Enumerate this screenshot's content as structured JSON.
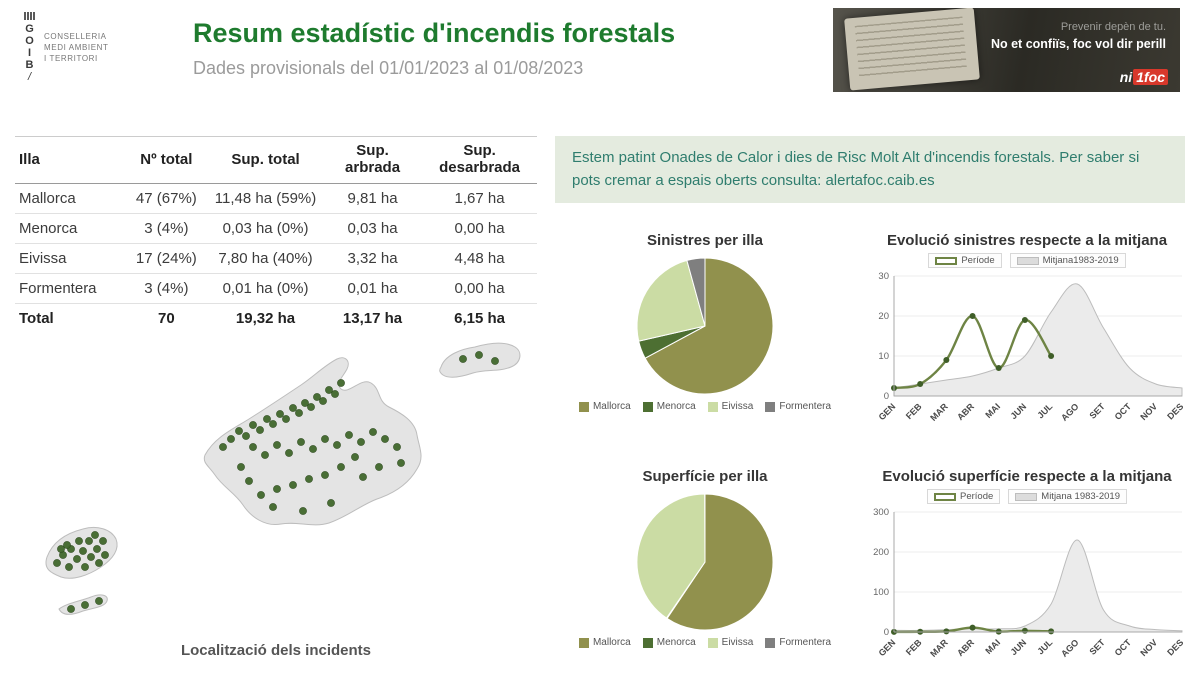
{
  "header": {
    "logo": {
      "letters": [
        "G",
        "O",
        "I",
        "B"
      ],
      "slash": "/"
    },
    "org": [
      "CONSELLERIA",
      "MEDI AMBIENT",
      "I TERRITORI"
    ],
    "title": "Resum estadístic d'incendis forestals",
    "subtitle": "Dades provisionals del 01/01/2023 al 01/08/2023"
  },
  "banner": {
    "line1": "Prevenir depèn de tu.",
    "line2": "No et confiïs, foc vol dir perill",
    "brand": {
      "part1": "ni",
      "part2": "1foc"
    }
  },
  "table": {
    "headers": [
      "Illa",
      "Nº total",
      "Sup. total",
      "Sup. arbrada",
      "Sup. desarbrada"
    ],
    "rows": [
      [
        "Mallorca",
        "47 (67%)",
        "11,48 ha (59%)",
        "9,81 ha",
        "1,67 ha"
      ],
      [
        "Menorca",
        "3 (4%)",
        "0,03 ha (0%)",
        "0,03 ha",
        "0,00 ha"
      ],
      [
        "Eivissa",
        "17 (24%)",
        "7,80 ha (40%)",
        "3,32 ha",
        "4,48 ha"
      ],
      [
        "Formentera",
        "3 (4%)",
        "0,01 ha (0%)",
        "0,01 ha",
        "0,00 ha"
      ]
    ],
    "total_row": [
      "Total",
      "70",
      "19,32 ha",
      "13,17 ha",
      "6,15 ha"
    ]
  },
  "alert": {
    "text": "Estem patint Onades de Calor i dies de Risc Molt Alt d'incendis forestals. Per saber si pots cremar a espais oberts consulta: alertafoc.caib.es"
  },
  "map": {
    "caption": "Localització dels incidents",
    "dots": {
      "mallorca": [
        [
          218,
          122
        ],
        [
          226,
          114
        ],
        [
          234,
          106
        ],
        [
          241,
          111
        ],
        [
          248,
          100
        ],
        [
          255,
          105
        ],
        [
          262,
          94
        ],
        [
          268,
          99
        ],
        [
          275,
          89
        ],
        [
          281,
          94
        ],
        [
          288,
          83
        ],
        [
          294,
          88
        ],
        [
          300,
          78
        ],
        [
          306,
          82
        ],
        [
          312,
          72
        ],
        [
          318,
          76
        ],
        [
          324,
          65
        ],
        [
          330,
          69
        ],
        [
          336,
          58
        ],
        [
          248,
          122
        ],
        [
          260,
          130
        ],
        [
          272,
          120
        ],
        [
          284,
          128
        ],
        [
          296,
          117
        ],
        [
          308,
          124
        ],
        [
          320,
          114
        ],
        [
          332,
          120
        ],
        [
          344,
          110
        ],
        [
          356,
          117
        ],
        [
          368,
          107
        ],
        [
          380,
          114
        ],
        [
          392,
          122
        ],
        [
          350,
          132
        ],
        [
          336,
          142
        ],
        [
          320,
          150
        ],
        [
          304,
          154
        ],
        [
          288,
          160
        ],
        [
          272,
          164
        ],
        [
          256,
          170
        ],
        [
          244,
          156
        ],
        [
          236,
          142
        ],
        [
          358,
          152
        ],
        [
          374,
          142
        ],
        [
          396,
          138
        ],
        [
          268,
          182
        ],
        [
          298,
          186
        ],
        [
          326,
          178
        ]
      ],
      "menorca": [
        [
          458,
          34
        ],
        [
          474,
          30
        ],
        [
          490,
          36
        ]
      ],
      "eivissa": [
        [
          52,
          238
        ],
        [
          58,
          230
        ],
        [
          64,
          242
        ],
        [
          66,
          224
        ],
        [
          72,
          234
        ],
        [
          78,
          226
        ],
        [
          80,
          242
        ],
        [
          84,
          216
        ],
        [
          86,
          232
        ],
        [
          92,
          224
        ],
        [
          94,
          238
        ],
        [
          98,
          216
        ],
        [
          100,
          230
        ],
        [
          74,
          216
        ],
        [
          62,
          220
        ],
        [
          90,
          210
        ],
        [
          56,
          224
        ]
      ],
      "formentera": [
        [
          66,
          284
        ],
        [
          80,
          280
        ],
        [
          94,
          276
        ]
      ]
    }
  },
  "chart_data": [
    {
      "id": "pie-sinistres",
      "type": "pie",
      "title": "Sinistres per illa",
      "labels": [
        "Mallorca",
        "Menorca",
        "Eivissa",
        "Formentera"
      ],
      "values": [
        47,
        3,
        17,
        3
      ],
      "colors": [
        "#91914d",
        "#4d6f32",
        "#cbdca4",
        "#7f7f7f"
      ],
      "legend_position": "bottom"
    },
    {
      "id": "line-sinistres",
      "type": "line",
      "title": "Evolució sinistres respecte a la mitjana",
      "x": [
        "GEN",
        "FEB",
        "MAR",
        "ABR",
        "MAI",
        "JUN",
        "JUL",
        "AGO",
        "SET",
        "OCT",
        "NOV",
        "DES"
      ],
      "series": [
        {
          "name": "Període",
          "values": [
            2,
            3,
            9,
            20,
            7,
            19,
            10
          ]
        },
        {
          "name": "Mitjana1983-2019",
          "values": [
            2,
            3,
            4,
            5,
            7,
            10,
            21,
            28,
            17,
            7,
            3,
            2
          ]
        }
      ],
      "ylim": [
        0,
        30
      ],
      "yticks": [
        0,
        10,
        20,
        30
      ],
      "grid": true,
      "legend_position": "top"
    },
    {
      "id": "pie-superficie",
      "type": "pie",
      "title": "Superfície per illa",
      "labels": [
        "Mallorca",
        "Menorca",
        "Eivissa",
        "Formentera"
      ],
      "values": [
        11.48,
        0.03,
        7.8,
        0.01
      ],
      "colors": [
        "#91914d",
        "#4d6f32",
        "#cbdca4",
        "#7f7f7f"
      ],
      "legend_position": "bottom"
    },
    {
      "id": "line-superficie",
      "type": "line",
      "title": "Evolució superfície respecte a la mitjana",
      "x": [
        "GEN",
        "FEB",
        "MAR",
        "ABR",
        "MAI",
        "JUN",
        "JUL",
        "AGO",
        "SET",
        "OCT",
        "NOV",
        "DES"
      ],
      "series": [
        {
          "name": "Període",
          "values": [
            0.3,
            0.5,
            1.5,
            11,
            1,
            3,
            1.5
          ]
        },
        {
          "name": "Mitjana 1983-2019",
          "values": [
            4,
            4,
            6,
            8,
            8,
            15,
            70,
            230,
            55,
            15,
            6,
            3
          ]
        }
      ],
      "ylim": [
        0,
        300
      ],
      "yticks": [
        0,
        100,
        200,
        300
      ],
      "grid": true,
      "legend_position": "top"
    }
  ],
  "colors": {
    "mallorca": "#91914d",
    "menorca": "#4d6f32",
    "eivissa": "#cbdca4",
    "formentera": "#7f7f7f",
    "periode_line": "#6e8444",
    "periode_dot": "#3f5e28",
    "mitjana_fill": "#ebebeb",
    "mitjana_stroke": "#bcbcbc",
    "dot": "#41682c",
    "dot_stroke": "#2e4b1f",
    "title_green": "#1e7b2e",
    "alert_bg": "#e4ebdf",
    "alert_text": "#2f7d6e"
  }
}
